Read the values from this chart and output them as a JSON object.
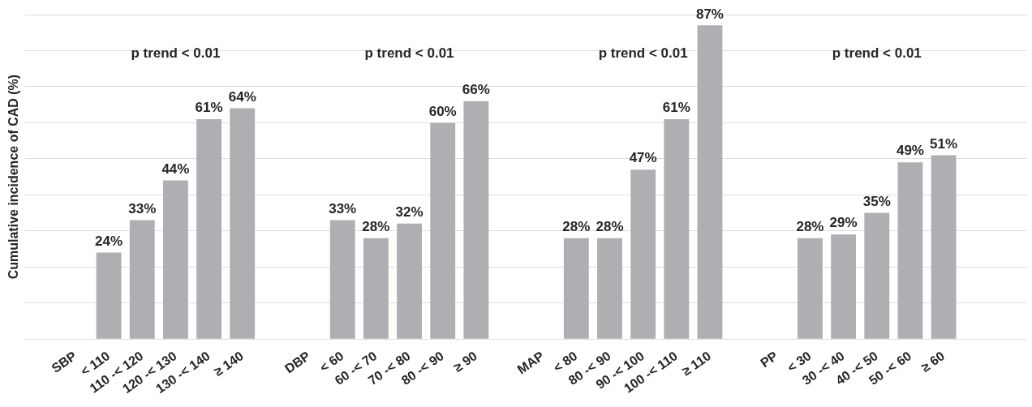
{
  "chart_data": {
    "type": "bar",
    "ylabel": "Cumulative incidence of CAD (%)",
    "categories": [
      null,
      "SBP",
      "< 110",
      "110 -< 120",
      "120 -< 130",
      "130 -< 140",
      "≥ 140",
      null,
      "DBP",
      "< 60",
      "60 -< 70",
      "70 -< 80",
      "80 -< 90",
      "≥ 90",
      null,
      "MAP",
      "< 80",
      "80 -< 90",
      "90 -< 100",
      "100 -< 110",
      "≥ 110",
      null,
      "PP",
      "< 30",
      "30 -< 40",
      "40 -< 50",
      "50 -< 60",
      "≥ 60",
      null,
      null
    ],
    "values": [
      null,
      null,
      24,
      33,
      44,
      61,
      64,
      null,
      null,
      33,
      28,
      32,
      60,
      66,
      null,
      null,
      28,
      28,
      47,
      61,
      87,
      null,
      null,
      28,
      29,
      35,
      49,
      51,
      null,
      null
    ],
    "value_labels": [
      null,
      null,
      "24%",
      "33%",
      "44%",
      "61%",
      "64%",
      null,
      null,
      "33%",
      "28%",
      "32%",
      "60%",
      "66%",
      null,
      null,
      "28%",
      "28%",
      "47%",
      "61%",
      "87%",
      null,
      null,
      "28%",
      "29%",
      "35%",
      "49%",
      "51%",
      null,
      null
    ],
    "color": "#aeafb2",
    "ylim": [
      0,
      90
    ],
    "yticks": [
      {
        "value": 0,
        "label": null
      },
      {
        "value": 10,
        "label": null
      },
      {
        "value": 20,
        "label": null
      },
      {
        "value": 30,
        "label": null
      },
      {
        "value": 40,
        "label": null
      },
      {
        "value": 50,
        "label": null
      },
      {
        "value": 60,
        "label": null
      },
      {
        "value": 70,
        "label": null
      },
      {
        "value": 80,
        "label": null
      },
      {
        "value": 90,
        "label": null
      }
    ],
    "tick_labels": "x",
    "grid": "y",
    "legend": false,
    "annotations": [
      "p trend < 0.01",
      "p trend < 0.01",
      "p trend < 0.01",
      "p trend < 0.01"
    ]
  }
}
